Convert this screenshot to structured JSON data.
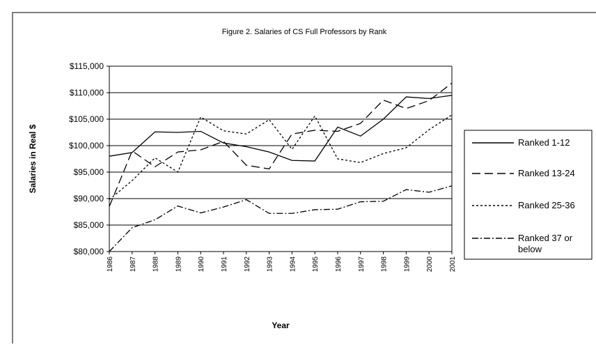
{
  "chart_data": {
    "type": "line",
    "title": "Figure 2. Salaries of CS Full Professors by Rank",
    "xlabel": "Year",
    "ylabel": "Salaries in Real $",
    "categories": [
      "1986",
      "1987",
      "1988",
      "1989",
      "1990",
      "1991",
      "1992",
      "1993",
      "1994",
      "1995",
      "1996",
      "1997",
      "1998",
      "1999",
      "2000",
      "2001"
    ],
    "series": [
      {
        "name": "Ranked 1-12",
        "color": "#000000",
        "line_style": "solid",
        "values": [
          98000,
          98700,
          102600,
          102500,
          102700,
          100500,
          99800,
          98800,
          97200,
          97100,
          103500,
          101800,
          105000,
          109200,
          108900,
          109500
        ]
      },
      {
        "name": "Ranked 13-24",
        "color": "#000000",
        "line_style": "dashed",
        "values": [
          88500,
          99000,
          96000,
          98800,
          99200,
          100800,
          96300,
          95600,
          102200,
          102900,
          102700,
          104200,
          108600,
          107000,
          108500,
          111800
        ]
      },
      {
        "name": "Ranked 25-36",
        "color": "#000000",
        "line_style": "dotted",
        "values": [
          89800,
          93400,
          97700,
          95000,
          105400,
          102800,
          102200,
          104900,
          99300,
          105600,
          97500,
          96800,
          98500,
          99600,
          103000,
          105800
        ]
      },
      {
        "name": "Ranked 37 or below",
        "color": "#000000",
        "line_style": "dashdot",
        "values": [
          80000,
          84500,
          86000,
          88600,
          87300,
          88400,
          89800,
          87200,
          87200,
          87900,
          88000,
          89400,
          89500,
          91700,
          91200,
          92400
        ]
      }
    ],
    "ylim": [
      80000,
      115000
    ],
    "yticks": [
      {
        "value": 80000,
        "label": "$80,000"
      },
      {
        "value": 85000,
        "label": "$85,000"
      },
      {
        "value": 90000,
        "label": "$90,000"
      },
      {
        "value": 95000,
        "label": "$95,000"
      },
      {
        "value": 100000,
        "label": "$100,000"
      },
      {
        "value": 105000,
        "label": "$105,000"
      },
      {
        "value": 110000,
        "label": "$110,000"
      },
      {
        "value": 115000,
        "label": "$115,000"
      }
    ],
    "grid": true,
    "legend": "right"
  }
}
